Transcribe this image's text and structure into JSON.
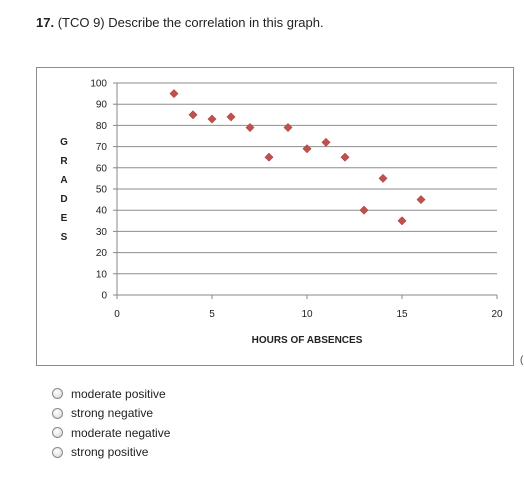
{
  "question": {
    "number": "17.",
    "text": " (TCO 9) Describe the correlation in this graph."
  },
  "chart_data": {
    "type": "scatter",
    "title": "",
    "xlabel": "HOURS OF  ABSENCES",
    "ylabel": "GRADES",
    "ylabel_letters": [
      "G",
      "R",
      "A",
      "D",
      "E",
      "S"
    ],
    "xlim": [
      0,
      20
    ],
    "ylim": [
      0,
      100
    ],
    "x_ticks": [
      0,
      5,
      10,
      15,
      20
    ],
    "y_ticks": [
      0,
      10,
      20,
      30,
      40,
      50,
      60,
      70,
      80,
      90,
      100
    ],
    "grid": "horizontal",
    "marker": "diamond",
    "marker_color": "#c0504d",
    "series": [
      {
        "x": [
          3,
          4,
          5,
          6,
          7,
          8,
          9,
          10,
          11,
          12,
          13,
          14,
          15,
          16
        ],
        "y": [
          95,
          85,
          83,
          84,
          79,
          65,
          79,
          69,
          72,
          65,
          40,
          55,
          35,
          45
        ]
      }
    ]
  },
  "edge_mark": "(",
  "options": [
    {
      "label": "moderate positive"
    },
    {
      "label": "strong negative"
    },
    {
      "label": "moderate negative"
    },
    {
      "label": "strong positive"
    }
  ]
}
